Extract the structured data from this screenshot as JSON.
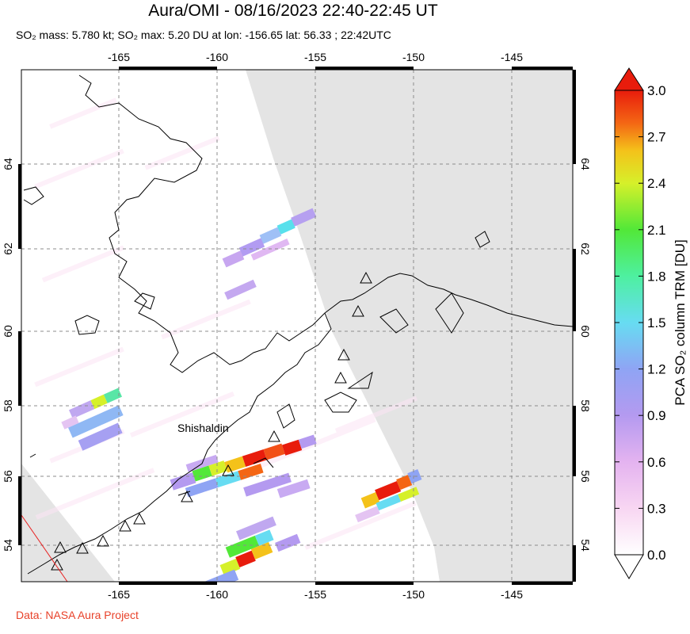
{
  "header": {
    "title": "Aura/OMI - 08/16/2023 22:40-22:45 UT",
    "subtitle": "SO₂ mass: 5.780 kt; SO₂ max: 5.20 DU at lon: -156.65 lat: 56.33 ; 22:42UTC"
  },
  "footer": {
    "credit": "Data: NASA Aura Project"
  },
  "map": {
    "lon_ticks": [
      "-165",
      "-160",
      "-155",
      "-150",
      "-145"
    ],
    "lat_ticks": [
      "54",
      "56",
      "58",
      "60",
      "62",
      "64"
    ],
    "volcano_label": "Shishaldin",
    "no_data_color": "#e4e4e4",
    "coast_color": "#000000"
  },
  "colorbar": {
    "label": "PCA SO₂ column TRM [DU]",
    "ticks": [
      "3.0",
      "2.7",
      "2.4",
      "2.1",
      "1.8",
      "1.5",
      "1.2",
      "0.9",
      "0.6",
      "0.3",
      "0.0"
    ],
    "range": [
      0.0,
      3.0
    ]
  }
}
